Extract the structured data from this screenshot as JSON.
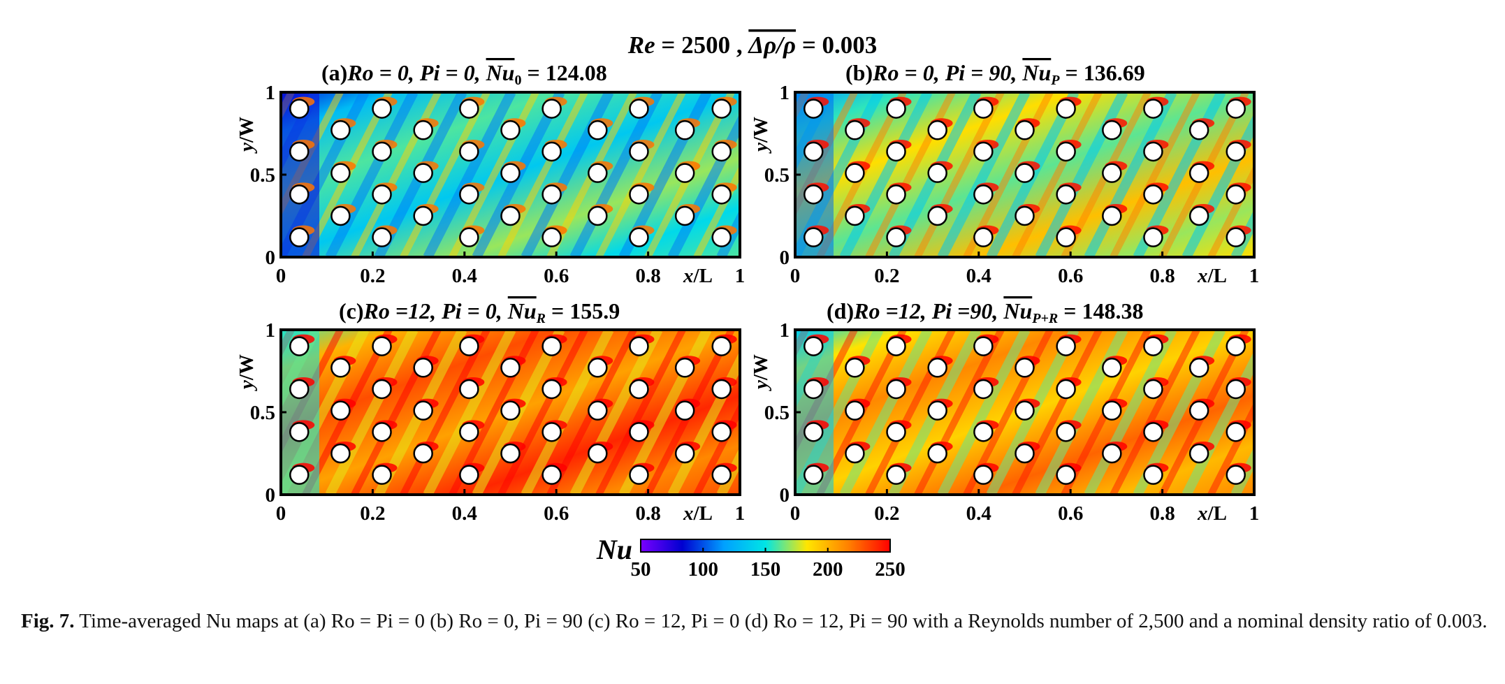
{
  "figure": {
    "main_title": {
      "re_symbol": "Re",
      "re_value": "2500",
      "ratio_symbol": "Δρ/ρ",
      "ratio_value": "0.003"
    },
    "panels": [
      {
        "id": "a",
        "tag": "(a)",
        "condition": "Ro = 0, Pi = 0,",
        "nu_symbol": "Nu",
        "nu_subscript": "0",
        "nu_value": "124.08",
        "tone": 0.55
      },
      {
        "id": "b",
        "tag": "(b)",
        "condition": "Ro = 0, Pi = 90,",
        "nu_symbol": "Nu",
        "nu_subscript": "P",
        "nu_value": "136.69",
        "tone": 0.68
      },
      {
        "id": "c",
        "tag": "(c)",
        "condition": "Ro =12, Pi = 0,",
        "nu_symbol": "Nu",
        "nu_subscript": "R",
        "nu_value": "155.9",
        "tone": 0.9
      },
      {
        "id": "d",
        "tag": "(d)",
        "condition": "Ro =12, Pi =90,",
        "nu_symbol": "Nu",
        "nu_subscript": "P+R",
        "nu_value": "148.38",
        "tone": 0.82
      }
    ],
    "axes": {
      "x_label": "x/L",
      "y_label": "y/W",
      "x_ticks": [
        "0",
        "0.2",
        "0.4",
        "0.6",
        "0.8",
        "1"
      ],
      "y_ticks": [
        "0",
        "0.5",
        "1"
      ]
    },
    "colorbar": {
      "label": "Nu",
      "ticks": [
        "50",
        "100",
        "150",
        "200",
        "250"
      ],
      "min": 50,
      "max": 250,
      "colors": [
        "#7a00ff",
        "#0000d0",
        "#00a0ff",
        "#00e5e5",
        "#ffe600",
        "#ff8000",
        "#ff0000"
      ]
    },
    "pin_colors": {
      "fill": "#ffffff",
      "outline": "#000000"
    }
  },
  "caption": {
    "label": "Fig. 7.",
    "text": "Time-averaged Nu maps at (a) Ro = Pi = 0 (b) Ro = 0, Pi = 90 (c) Ro = 12, Pi = 0 (d) Ro = 12, Pi = 90 with a Reynolds number of 2,500 and a nominal density ratio of 0.003."
  }
}
